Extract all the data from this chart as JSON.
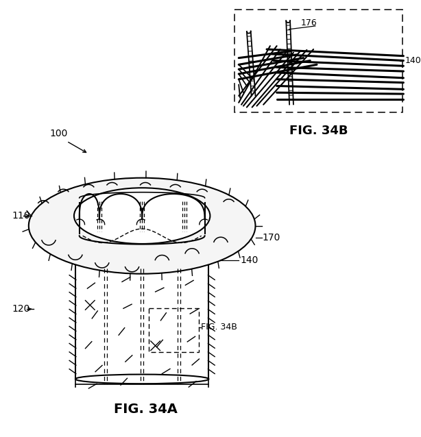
{
  "fig_title_a": "FIG. 34A",
  "fig_title_b": "FIG. 34B",
  "bg_color": "#ffffff",
  "line_color": "#000000",
  "label_100": "100",
  "label_110": "110",
  "label_120": "120",
  "label_140": "140",
  "label_170": "170",
  "label_176": "176",
  "label_fig34b": "FIG. 34B"
}
